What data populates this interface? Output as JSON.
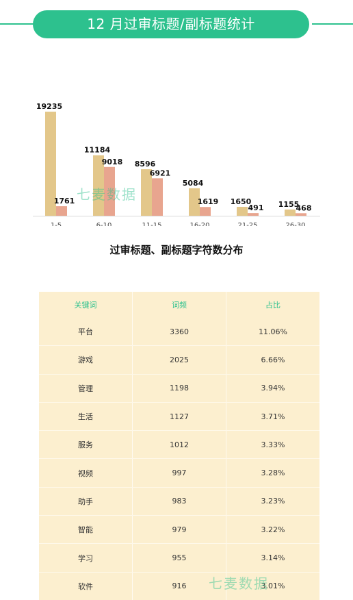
{
  "header": {
    "title": "12 月过审标题/副标题统计"
  },
  "watermarks": [
    "七麦数据",
    "七麦数据"
  ],
  "colors": {
    "accent": "#2dc18e",
    "title_bar": "#e3c78a",
    "subtitle_bar": "#e8a58f",
    "table_bg": "#fcefcf"
  },
  "chart_data": {
    "type": "bar",
    "title": "过审标题、副标题字符数分布",
    "categories": [
      "1-5",
      "6-10",
      "11-15",
      "16-20",
      "21-25",
      "26-30"
    ],
    "series": [
      {
        "values": [
          19235,
          11184,
          8596,
          5084,
          1650,
          1155
        ]
      },
      {
        "values": [
          1761,
          9018,
          6921,
          1619,
          491,
          468
        ]
      }
    ],
    "ylim": [
      0,
      20000
    ],
    "grid": false
  },
  "table": {
    "headers": [
      "关键词",
      "词频",
      "占比"
    ],
    "rows": [
      [
        "平台",
        "3360",
        "11.06%"
      ],
      [
        "游戏",
        "2025",
        "6.66%"
      ],
      [
        "管理",
        "1198",
        "3.94%"
      ],
      [
        "生活",
        "1127",
        "3.71%"
      ],
      [
        "服务",
        "1012",
        "3.33%"
      ],
      [
        "视频",
        "997",
        "3.28%"
      ],
      [
        "助手",
        "983",
        "3.23%"
      ],
      [
        "智能",
        "979",
        "3.22%"
      ],
      [
        "学习",
        "955",
        "3.14%"
      ],
      [
        "软件",
        "916",
        "3.01%"
      ]
    ]
  }
}
